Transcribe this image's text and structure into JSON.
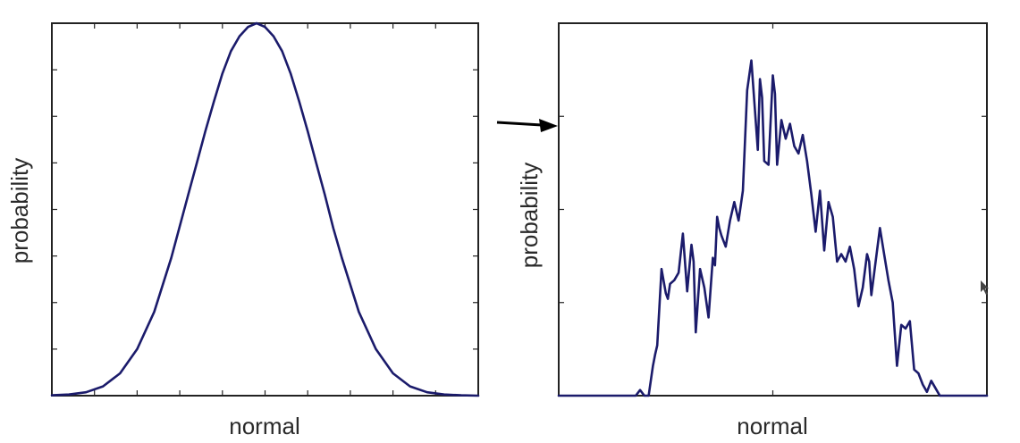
{
  "colors": {
    "curve": "#1b1b6b",
    "frame": "#222222",
    "arrow": "#000000"
  },
  "arrow": {
    "icon": "right-arrow-icon"
  },
  "chart_data": [
    {
      "type": "line",
      "title": "",
      "xlabel": "normal",
      "ylabel": "probability",
      "xlim": [
        0,
        100
      ],
      "ylim": [
        0,
        100
      ],
      "grid": false,
      "x_ticks": [
        10,
        20,
        30,
        40,
        50,
        60,
        70,
        80,
        90
      ],
      "y_ticks": [
        12.5,
        25,
        37.5,
        50,
        62.5,
        75,
        87.5
      ],
      "series": [
        {
          "x": [
            0,
            4,
            8,
            12,
            16,
            20,
            24,
            28,
            32,
            34,
            36,
            38,
            40,
            42,
            44,
            46,
            48,
            50,
            52,
            54,
            56,
            58,
            60,
            62,
            64,
            66,
            68,
            72,
            76,
            80,
            84,
            88,
            92,
            96,
            100
          ],
          "values": [
            0.1,
            0.3,
            0.9,
            2.5,
            6,
            12.5,
            22.5,
            37,
            54,
            62.5,
            71,
            79,
            86.5,
            92.5,
            96.5,
            99,
            100,
            99,
            96.5,
            92.5,
            86.5,
            79,
            71,
            62.5,
            54,
            45,
            37,
            22.5,
            12.5,
            6,
            2.5,
            0.9,
            0.3,
            0.1,
            0
          ]
        }
      ]
    },
    {
      "type": "line",
      "title": "",
      "xlabel": "normal",
      "ylabel": "probability",
      "xlim": [
        0,
        100
      ],
      "ylim": [
        0,
        100
      ],
      "grid": false,
      "x_ticks": [
        50
      ],
      "y_ticks": [
        25,
        50,
        75
      ],
      "series": [
        {
          "x": [
            0,
            18,
            19,
            20,
            21,
            22,
            22.5,
            23,
            24,
            25,
            25.5,
            26,
            27,
            28,
            29,
            30,
            31,
            31.5,
            32,
            33,
            34,
            35,
            36,
            36.5,
            37,
            37.5,
            38,
            39,
            40,
            41,
            42,
            43,
            44,
            45,
            46,
            46.5,
            47,
            47.5,
            48,
            49,
            50,
            50.5,
            51,
            52,
            53,
            54,
            55,
            56,
            57,
            58,
            59,
            60,
            61,
            61.5,
            62,
            63,
            64,
            65,
            66,
            67,
            68,
            69,
            70,
            71,
            72,
            72.5,
            73,
            74,
            75,
            76,
            77,
            78,
            79,
            80,
            81,
            82,
            83,
            84,
            85,
            86,
            87,
            88,
            89,
            90,
            91,
            92,
            93,
            94,
            100
          ],
          "values": [
            0,
            0,
            1.5,
            0,
            0,
            8,
            11,
            13.5,
            34,
            27.5,
            26,
            30,
            31,
            33,
            43.5,
            28,
            40.5,
            36,
            17,
            34,
            29,
            21,
            37,
            35,
            48,
            45,
            43,
            40,
            47,
            52,
            47,
            55,
            82,
            90,
            74,
            66,
            85,
            80,
            63,
            62,
            86,
            81,
            62,
            74,
            69,
            73,
            67,
            65,
            70,
            63,
            54,
            44,
            55,
            47,
            39,
            52,
            48,
            36,
            38,
            36,
            40,
            34,
            24,
            29,
            38,
            36,
            27,
            36,
            45,
            38,
            31,
            25,
            8,
            19,
            18,
            20,
            7,
            6,
            3,
            1,
            4,
            2,
            0,
            0,
            0,
            0,
            0,
            0,
            0
          ]
        }
      ]
    }
  ]
}
